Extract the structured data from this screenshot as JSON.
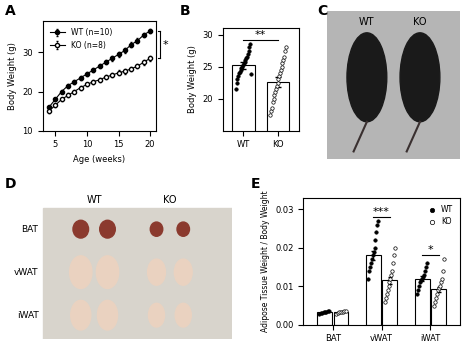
{
  "chart_data": [
    {
      "panel": "A",
      "type": "line",
      "x_label": "Age (weeks)",
      "y_label": "Body Weight (g)",
      "x": [
        4,
        5,
        6,
        7,
        8,
        9,
        10,
        11,
        12,
        13,
        14,
        15,
        16,
        17,
        18,
        19,
        20
      ],
      "series": [
        {
          "name": "WT (n=10)",
          "color": "#000000",
          "marker": "filled",
          "line_style": "solid",
          "values": [
            16,
            18,
            20,
            21.5,
            22.5,
            23.5,
            24.5,
            25.5,
            26.5,
            27.5,
            28.5,
            29.5,
            30.5,
            32,
            33,
            34.5,
            35.5
          ],
          "errors": [
            0.4,
            0.4,
            0.5,
            0.5,
            0.5,
            0.5,
            0.5,
            0.5,
            0.5,
            0.5,
            0.6,
            0.6,
            0.6,
            0.6,
            0.6,
            0.6,
            0.6
          ]
        },
        {
          "name": "KO (n=8)",
          "color": "#000000",
          "marker": "open",
          "line_style": "solid",
          "values": [
            15,
            16.5,
            18,
            19,
            20,
            21,
            21.8,
            22.5,
            23,
            23.7,
            24.2,
            24.8,
            25.2,
            25.8,
            26.5,
            27.5,
            28.5
          ],
          "errors": [
            0.4,
            0.4,
            0.4,
            0.5,
            0.5,
            0.5,
            0.5,
            0.5,
            0.5,
            0.5,
            0.5,
            0.6,
            0.6,
            0.6,
            0.6,
            0.6,
            0.6
          ]
        }
      ],
      "xlim": [
        3,
        21
      ],
      "xticks": [
        5,
        10,
        15,
        20
      ],
      "ylim": [
        10,
        38
      ],
      "yticks": [
        10,
        20,
        30
      ],
      "legend": "upper left",
      "annotations": [
        "*"
      ]
    },
    {
      "panel": "B",
      "type": "bar",
      "y_label": "Body Weight (g)",
      "categories": [
        "WT",
        "KO"
      ],
      "values": [
        25.2,
        22.6
      ],
      "errors": [
        0.5,
        0.8
      ],
      "points": [
        [
          21.5,
          22.5,
          23,
          23.5,
          24,
          24.2,
          24.5,
          24.8,
          25,
          25.2,
          25.5,
          25.8,
          26,
          26.3,
          26.5,
          27,
          27.5,
          28,
          28.5,
          23.8
        ],
        [
          17.5,
          18,
          18.5,
          19.5,
          20,
          20.5,
          21,
          21.5,
          22,
          22.5,
          23,
          23.5,
          24,
          24.5,
          25,
          25.5,
          26,
          26.5,
          27.5,
          28
        ]
      ],
      "color": "#ffffff",
      "ylim": [
        15,
        31
      ],
      "yticks": [
        20,
        25,
        30
      ],
      "annotations": [
        "**"
      ]
    },
    {
      "panel": "E",
      "type": "bar",
      "y_label": "Adipose Tissue Weight / Body Weight",
      "categories": [
        "BAT",
        "vWAT",
        "iWAT"
      ],
      "series": [
        {
          "name": "WT",
          "color": "#000000",
          "marker": "filled",
          "values": [
            0.0032,
            0.018,
            0.012
          ],
          "errors": [
            0.0002,
            0.0012,
            0.0007
          ],
          "points": [
            [
              0.0028,
              0.003,
              0.0031,
              0.0032,
              0.0033,
              0.0034,
              0.0035,
              0.0036
            ],
            [
              0.012,
              0.014,
              0.015,
              0.016,
              0.017,
              0.018,
              0.019,
              0.02,
              0.022,
              0.024,
              0.026,
              0.027
            ],
            [
              0.008,
              0.009,
              0.01,
              0.011,
              0.0115,
              0.012,
              0.0125,
              0.013,
              0.014,
              0.015,
              0.016
            ]
          ]
        },
        {
          "name": "KO",
          "color": "#ffffff",
          "marker": "open",
          "values": [
            0.0033,
            0.0115,
            0.0092
          ],
          "errors": [
            0.0002,
            0.0008,
            0.0007
          ],
          "points": [
            [
              0.0029,
              0.003,
              0.0032,
              0.0033,
              0.0034,
              0.0035,
              0.0037
            ],
            [
              0.006,
              0.007,
              0.008,
              0.009,
              0.01,
              0.011,
              0.012,
              0.013,
              0.014,
              0.016,
              0.018,
              0.02
            ],
            [
              0.005,
              0.006,
              0.007,
              0.008,
              0.009,
              0.0095,
              0.01,
              0.011,
              0.012,
              0.014,
              0.017
            ]
          ]
        }
      ],
      "ylim": [
        0,
        0.033
      ],
      "yticks": [
        {
          "value": 0,
          "label": "0.00"
        },
        {
          "value": 0.01,
          "label": "0.01"
        },
        {
          "value": 0.02,
          "label": "0.02"
        },
        {
          "value": 0.03,
          "label": "0.03"
        }
      ],
      "legend": "upper right",
      "annotations": [
        {
          "category": "vWAT",
          "text": "***"
        },
        {
          "category": "iWAT",
          "text": "*"
        }
      ]
    }
  ],
  "photos": [
    {
      "panel": "C",
      "labels": [
        "WT",
        "KO"
      ]
    },
    {
      "panel": "D",
      "columns": [
        "WT",
        "KO"
      ],
      "rows": [
        "BAT",
        "vWAT",
        "iWAT"
      ]
    }
  ]
}
